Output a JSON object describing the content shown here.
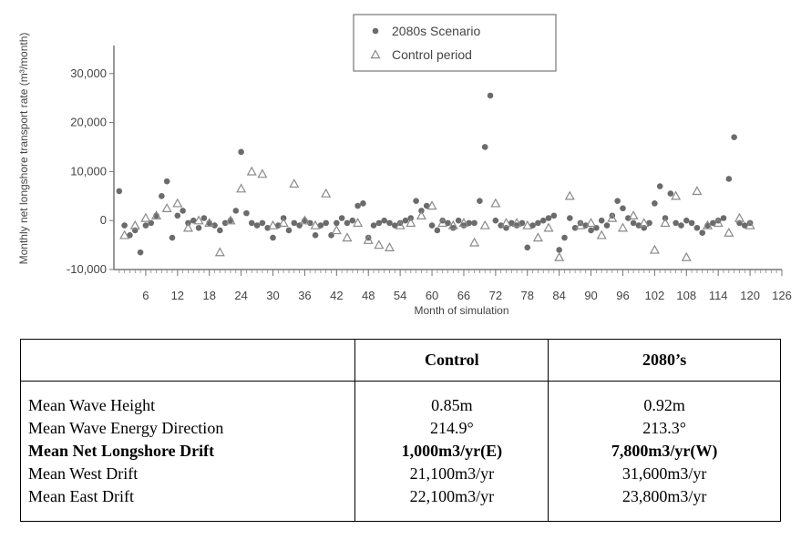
{
  "chart_data": {
    "type": "scatter",
    "xlabel": "Month of simulation",
    "ylabel": "Monthly net longshore transport rate (m³/month)",
    "xlim": [
      0,
      126
    ],
    "ylim": [
      -10000,
      32000
    ],
    "yticks": [
      -10000,
      0,
      10000,
      20000,
      30000
    ],
    "ytick_labels": [
      "-10,000",
      "0",
      "10,000",
      "20,000",
      "30,000"
    ],
    "xticks": [
      6,
      12,
      18,
      24,
      30,
      36,
      42,
      48,
      54,
      60,
      66,
      72,
      78,
      84,
      90,
      96,
      102,
      108,
      114,
      120,
      126
    ],
    "xtick_labels": [
      "6",
      "12",
      "18",
      "24",
      "30",
      "36",
      "42",
      "48",
      "54",
      "60",
      "66",
      "72",
      "78",
      "84",
      "90",
      "96",
      "102",
      "108",
      "114",
      "120",
      "126"
    ],
    "legend_position": "top-center",
    "series": [
      {
        "name": "2080s Scenario",
        "marker": "circle",
        "color": "#6b6b6b",
        "x": [
          1,
          2,
          3,
          4,
          5,
          6,
          7,
          8,
          9,
          10,
          11,
          12,
          13,
          14,
          15,
          16,
          17,
          18,
          19,
          20,
          21,
          22,
          23,
          24,
          25,
          26,
          27,
          28,
          29,
          30,
          31,
          32,
          33,
          34,
          35,
          36,
          37,
          38,
          39,
          40,
          41,
          42,
          43,
          44,
          45,
          46,
          47,
          48,
          49,
          50,
          51,
          52,
          53,
          54,
          55,
          56,
          57,
          58,
          59,
          60,
          61,
          62,
          63,
          64,
          65,
          66,
          67,
          68,
          69,
          70,
          71,
          72,
          73,
          74,
          75,
          76,
          77,
          78,
          79,
          80,
          81,
          82,
          83,
          84,
          85,
          86,
          87,
          88,
          89,
          90,
          91,
          92,
          93,
          94,
          95,
          96,
          97,
          98,
          99,
          100,
          101,
          102,
          103,
          104,
          105,
          106,
          107,
          108,
          109,
          110,
          111,
          112,
          113,
          114,
          115,
          116,
          117,
          118,
          119,
          120
        ],
        "y": [
          6000,
          -1000,
          -3000,
          -2000,
          -6500,
          -1000,
          -500,
          1000,
          5000,
          8000,
          -3500,
          1000,
          2000,
          -500,
          0,
          -1500,
          500,
          -500,
          -1000,
          -2000,
          -500,
          0,
          2000,
          14000,
          1500,
          -500,
          -1000,
          -500,
          -1500,
          -3500,
          -1000,
          500,
          -2000,
          -500,
          -1000,
          0,
          -500,
          -3000,
          -1000,
          -500,
          -3000,
          -500,
          500,
          -500,
          0,
          3000,
          3500,
          -3500,
          -1000,
          -500,
          0,
          -500,
          -1000,
          -500,
          0,
          500,
          4000,
          2000,
          3000,
          -1000,
          -2000,
          0,
          -500,
          -1500,
          0,
          -1000,
          -500,
          -500,
          4000,
          15000,
          25500,
          0,
          -1000,
          -1500,
          -500,
          -1000,
          -500,
          -5500,
          -1000,
          -500,
          0,
          500,
          1000,
          -6000,
          -3500,
          500,
          -1500,
          -500,
          -1000,
          -2000,
          -1500,
          0,
          -1000,
          1000,
          4000,
          2500,
          500,
          -500,
          -1000,
          -1500,
          -500,
          3500,
          7000,
          500,
          5500,
          -500,
          -1000,
          0,
          -500,
          -1500,
          -2500,
          -1000,
          -500,
          0,
          500,
          8500,
          17000,
          -500,
          -1000,
          -500
        ]
      },
      {
        "name": "Control period",
        "marker": "triangle",
        "color": "#8a8a8a",
        "x": [
          2,
          4,
          6,
          8,
          10,
          12,
          14,
          16,
          18,
          20,
          22,
          24,
          26,
          28,
          30,
          32,
          34,
          36,
          38,
          40,
          42,
          44,
          46,
          48,
          50,
          52,
          54,
          56,
          58,
          60,
          62,
          64,
          66,
          68,
          70,
          72,
          74,
          76,
          78,
          80,
          82,
          84,
          86,
          88,
          90,
          92,
          94,
          96,
          98,
          100,
          102,
          104,
          106,
          108,
          110,
          112,
          114,
          116,
          118,
          120
        ],
        "y": [
          -3000,
          -1000,
          500,
          1000,
          2500,
          3500,
          -1500,
          0,
          -500,
          -6500,
          0,
          6500,
          10000,
          9500,
          -1000,
          -500,
          7500,
          0,
          -1000,
          5500,
          -2000,
          -3500,
          -500,
          -4000,
          -5000,
          -5500,
          -1000,
          -500,
          1000,
          3000,
          -500,
          -1000,
          -500,
          -4500,
          -1000,
          3500,
          -500,
          -500,
          -1000,
          -3500,
          -1500,
          -7500,
          5000,
          -1000,
          -500,
          -3000,
          500,
          -1500,
          1000,
          -500,
          -6000,
          -500,
          5000,
          -7500,
          6000,
          -1000,
          -500,
          -2500,
          500,
          -1000
        ]
      }
    ]
  },
  "table": {
    "headers": [
      "",
      "Control",
      "2080’s"
    ],
    "rows": [
      {
        "label": "Mean Wave Height",
        "control": "0.85m",
        "future": "0.92m",
        "bold": false
      },
      {
        "label": "Mean Wave Energy Direction",
        "control": "214.9°",
        "future": "213.3°",
        "bold": false
      },
      {
        "label": "Mean Net Longshore Drift",
        "control": "1,000m3/yr(E)",
        "future": "7,800m3/yr(W)",
        "bold": true
      },
      {
        "label": "Mean West Drift",
        "control": "21,100m3/yr",
        "future": "31,600m3/yr",
        "bold": false
      },
      {
        "label": "Mean East Drift",
        "control": "22,100m3/yr",
        "future": "23,800m3/yr",
        "bold": false
      }
    ]
  }
}
